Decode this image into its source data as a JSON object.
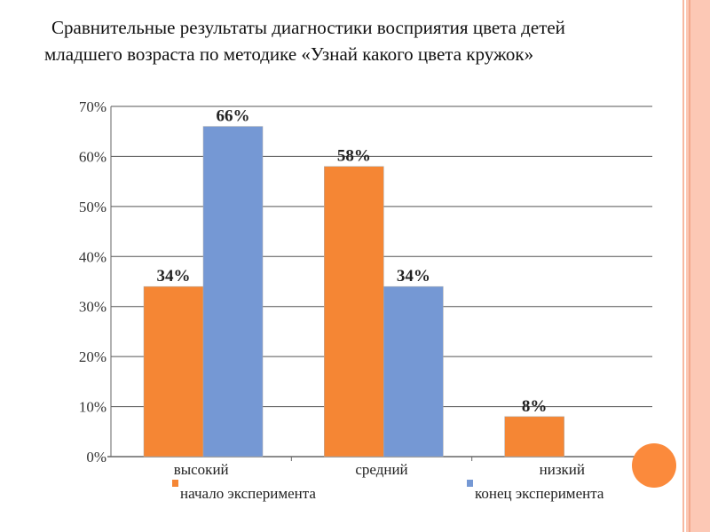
{
  "chart_data": {
    "type": "bar",
    "title": "Сравнительные результаты диагностики восприятия цвета детей младшего возраста по методике «Узнай какого цвета кружок»",
    "title_lines": [
      "Сравнительные результаты диагностики восприятия цвета детей",
      "младшего возраста по методике «Узнай какого цвета кружок»"
    ],
    "categories": [
      "высокий",
      "средний",
      "низкий"
    ],
    "series": [
      {
        "name": "начало эксперимента",
        "color": "#f58634",
        "values": [
          34,
          58,
          8
        ],
        "labels": [
          "34%",
          "58%",
          "8%"
        ]
      },
      {
        "name": "конец эксперимента",
        "color": "#7598d4",
        "values": [
          66,
          34,
          null
        ],
        "labels": [
          "66%",
          "34%",
          ""
        ]
      }
    ],
    "ylim": [
      0,
      70
    ],
    "yticks": [
      "0%",
      "10%",
      "20%",
      "30%",
      "40%",
      "50%",
      "60%",
      "70%"
    ],
    "grid": true,
    "legend": "bottom"
  }
}
